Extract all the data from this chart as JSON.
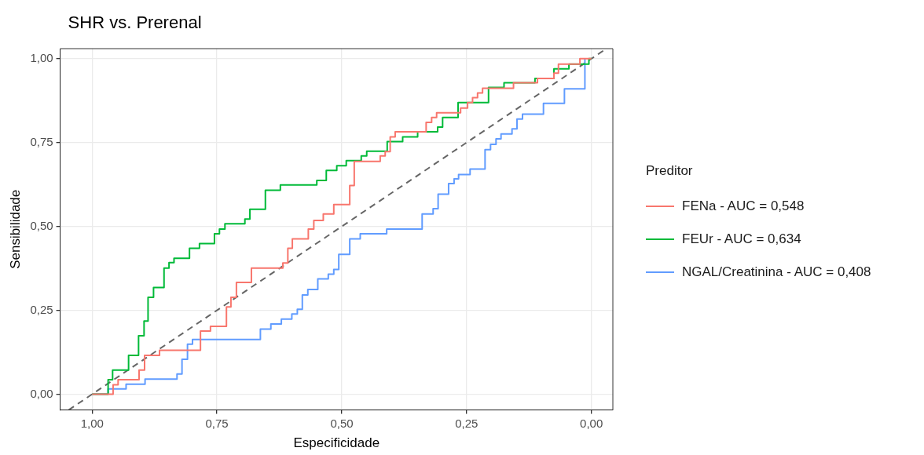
{
  "chart_data": {
    "type": "step",
    "title": "SHR vs. Prerenal",
    "xlabel": "Especificidade",
    "ylabel": "Sensibilidade",
    "legend_title": "Preditor",
    "legend": "right",
    "grid": true,
    "xlim": [
      1.064,
      -0.043
    ],
    "ylim": [
      -0.047,
      1.03
    ],
    "xticks": [
      {
        "value": 1,
        "label": "1,00"
      },
      {
        "value": 0.75,
        "label": "0,75"
      },
      {
        "value": 0.5,
        "label": "0,50"
      },
      {
        "value": 0.25,
        "label": "0,25"
      },
      {
        "value": 0,
        "label": "0,00"
      }
    ],
    "yticks": [
      {
        "value": 0,
        "label": "0,00"
      },
      {
        "value": 0.25,
        "label": "0,25"
      },
      {
        "value": 0.5,
        "label": "0,50"
      },
      {
        "value": 0.75,
        "label": "0,75"
      },
      {
        "value": 1,
        "label": "1,00"
      }
    ],
    "series": [
      {
        "name": "FENa - AUC = 0,548",
        "color": "#f8766d",
        "x": [
          1,
          0.958,
          0.948,
          0.906,
          0.895,
          0.865,
          0.783,
          0.763,
          0.731,
          0.722,
          0.711,
          0.681,
          0.618,
          0.608,
          0.599,
          0.567,
          0.556,
          0.537,
          0.516,
          0.484,
          0.475,
          0.423,
          0.413,
          0.403,
          0.393,
          0.331,
          0.32,
          0.31,
          0.262,
          0.248,
          0.238,
          0.228,
          0.218,
          0.156,
          0.108,
          0.075,
          0.066,
          0.023,
          0
        ],
        "values": [
          0,
          0.028,
          0.043,
          0.072,
          0.116,
          0.131,
          0.188,
          0.202,
          0.26,
          0.289,
          0.333,
          0.376,
          0.391,
          0.435,
          0.463,
          0.492,
          0.518,
          0.537,
          0.565,
          0.622,
          0.694,
          0.71,
          0.723,
          0.767,
          0.782,
          0.81,
          0.825,
          0.839,
          0.853,
          0.869,
          0.884,
          0.898,
          0.912,
          0.928,
          0.941,
          0.957,
          0.984,
          1,
          1
        ]
      },
      {
        "name": "FEUr - AUC = 0,634",
        "color": "#00ba38",
        "x": [
          1,
          0.968,
          0.959,
          0.927,
          0.907,
          0.896,
          0.888,
          0.877,
          0.856,
          0.846,
          0.836,
          0.805,
          0.785,
          0.755,
          0.745,
          0.734,
          0.694,
          0.684,
          0.653,
          0.623,
          0.55,
          0.531,
          0.51,
          0.491,
          0.461,
          0.45,
          0.409,
          0.378,
          0.348,
          0.308,
          0.298,
          0.267,
          0.206,
          0.175,
          0.113,
          0.075,
          0.045,
          0.005,
          0
        ],
        "values": [
          0,
          0.043,
          0.072,
          0.116,
          0.174,
          0.218,
          0.289,
          0.318,
          0.376,
          0.392,
          0.405,
          0.435,
          0.449,
          0.478,
          0.492,
          0.508,
          0.522,
          0.551,
          0.608,
          0.624,
          0.637,
          0.667,
          0.681,
          0.696,
          0.71,
          0.724,
          0.753,
          0.767,
          0.782,
          0.796,
          0.825,
          0.869,
          0.914,
          0.928,
          0.941,
          0.97,
          0.984,
          1,
          1
        ]
      },
      {
        "name": "NGAL/Creatinina - AUC = 0,408",
        "color": "#619cff",
        "x": [
          1,
          0.968,
          0.932,
          0.894,
          0.83,
          0.82,
          0.809,
          0.799,
          0.663,
          0.642,
          0.621,
          0.6,
          0.589,
          0.579,
          0.568,
          0.548,
          0.527,
          0.516,
          0.506,
          0.484,
          0.463,
          0.41,
          0.339,
          0.317,
          0.307,
          0.286,
          0.275,
          0.266,
          0.243,
          0.213,
          0.202,
          0.191,
          0.181,
          0.159,
          0.149,
          0.138,
          0.096,
          0.054,
          0.013
        ],
        "values": [
          0,
          0.016,
          0.03,
          0.045,
          0.06,
          0.104,
          0.149,
          0.163,
          0.194,
          0.209,
          0.224,
          0.239,
          0.253,
          0.296,
          0.312,
          0.344,
          0.358,
          0.372,
          0.417,
          0.463,
          0.478,
          0.492,
          0.537,
          0.553,
          0.596,
          0.628,
          0.642,
          0.655,
          0.671,
          0.729,
          0.745,
          0.761,
          0.776,
          0.791,
          0.82,
          0.835,
          0.867,
          0.91,
          1
        ]
      },
      {
        "type": "line",
        "color": "#666666",
        "line_style": "dashed",
        "x": [
          1.047,
          -0.03
        ],
        "values": [
          -0.047,
          1.03
        ]
      }
    ]
  }
}
